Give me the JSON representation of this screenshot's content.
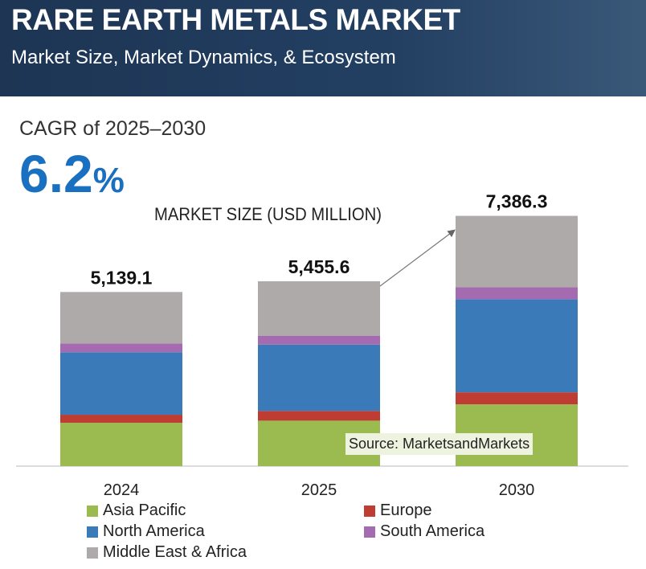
{
  "header": {
    "title": "RARE EARTH METALS MARKET",
    "subtitle": "Market Size, Market Dynamics, & Ecosystem"
  },
  "cagr": {
    "label": "CAGR of 2025–2030",
    "value": "6.2",
    "unit": "%"
  },
  "source": "Source: MarketsandMarkets",
  "chart_data": {
    "type": "bar",
    "stacked": true,
    "title": "MARKET SIZE (USD MILLION)",
    "categories": [
      "2024",
      "2025",
      "2030"
    ],
    "totals": [
      "5,139.1",
      "5,455.6",
      "7,386.3"
    ],
    "series": [
      {
        "name": "Asia Pacific",
        "color": "#9bbb50",
        "values": [
          1279,
          1342,
          1823
        ]
      },
      {
        "name": "Europe",
        "color": "#be3c32",
        "values": [
          238,
          286,
          355
        ]
      },
      {
        "name": "North America",
        "color": "#3a7ab9",
        "values": [
          1843,
          1958,
          2746
        ]
      },
      {
        "name": "South America",
        "color": "#a56bb0",
        "values": [
          260,
          264,
          355
        ]
      },
      {
        "name": "Middle East & Africa",
        "color": "#aeaaaa",
        "values": [
          1519,
          1606,
          2107
        ]
      }
    ],
    "ylim": [
      0,
      7400
    ],
    "grid": false,
    "legend": "bottom"
  }
}
